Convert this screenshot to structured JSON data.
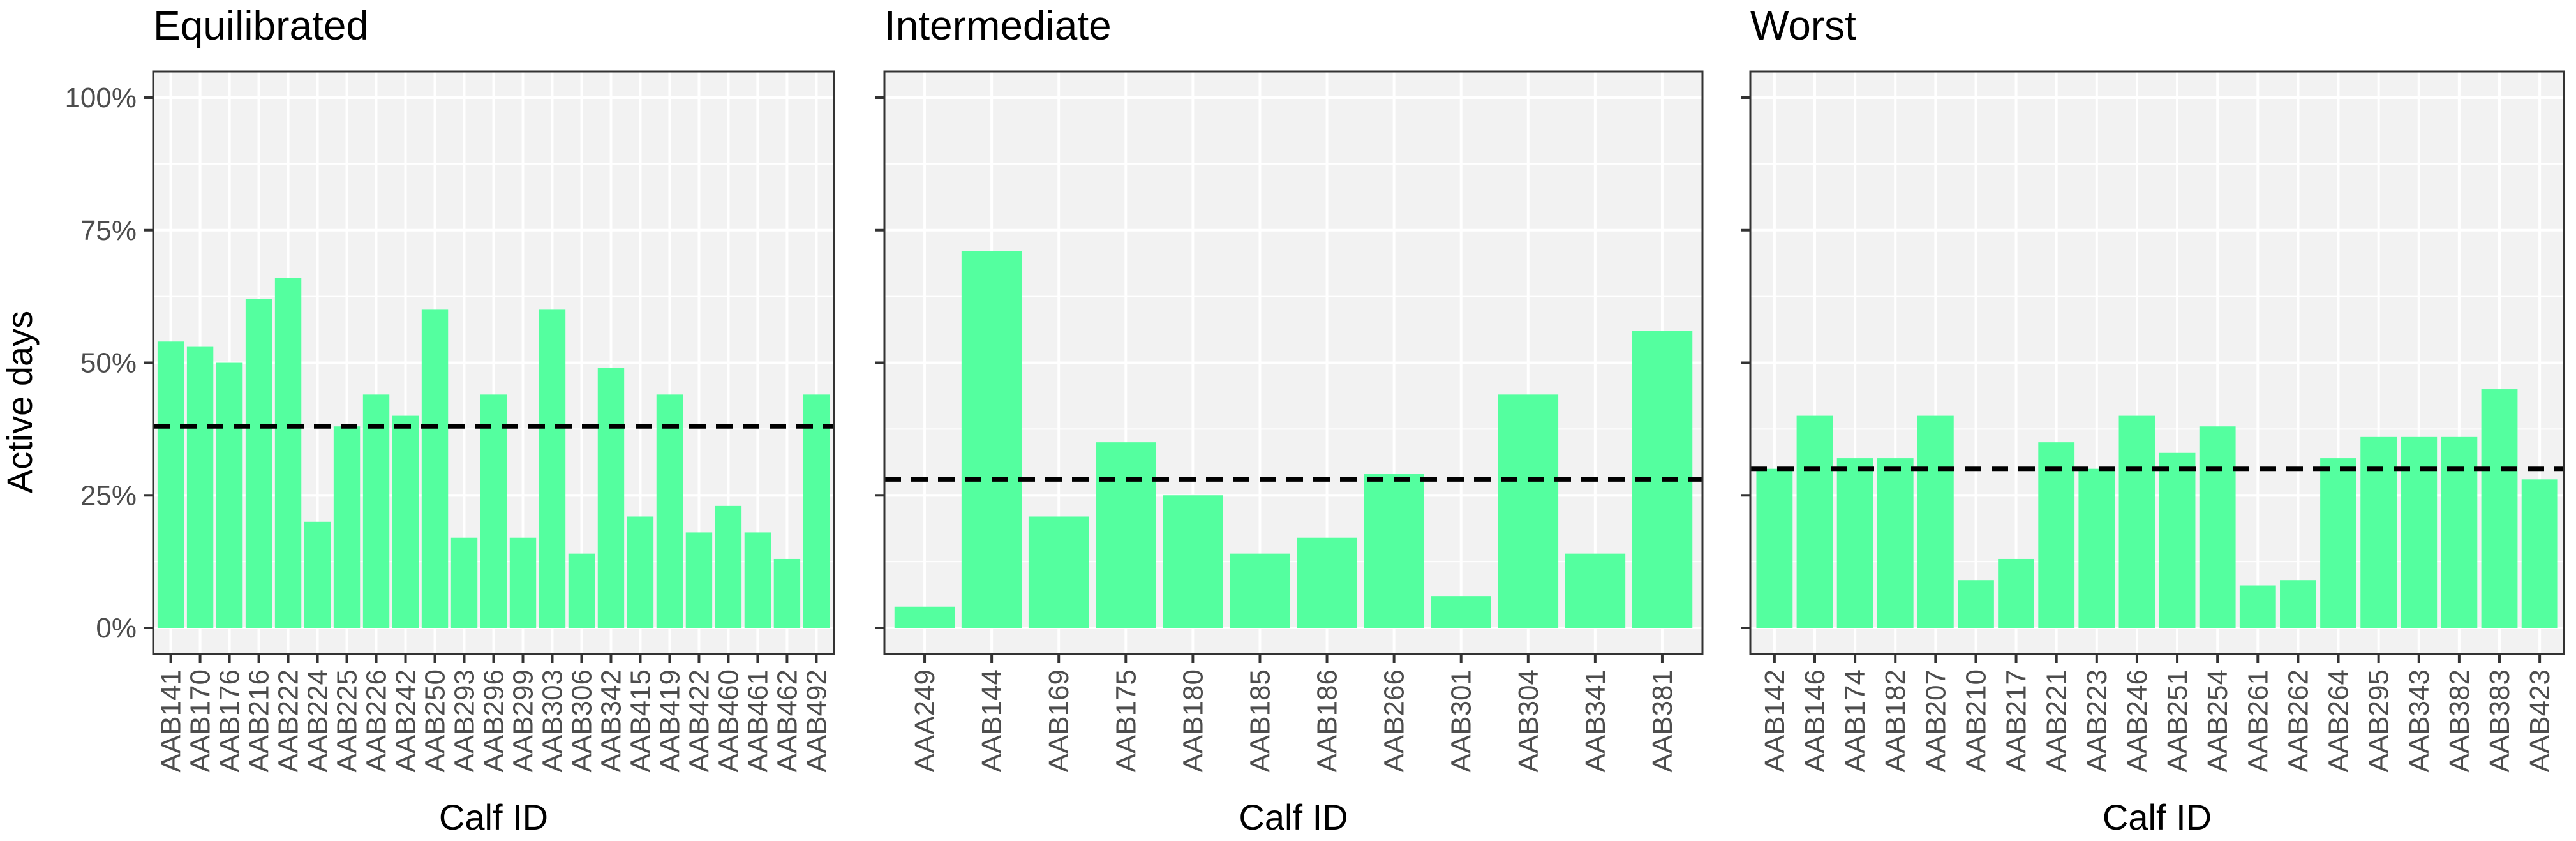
{
  "y_axis_label": "Active days",
  "colors": {
    "bar": "#54FF9F",
    "panel_background": "#F2F2F2",
    "gridline": "#FFFFFF",
    "reference_line": "#000000",
    "axis_text": "#4D4D4D",
    "title_text": "#000000"
  },
  "chart_data": [
    {
      "type": "bar",
      "title": "Equilibrated",
      "xlabel": "Calf ID",
      "ylabel": "Active days",
      "ylim": [
        0,
        1
      ],
      "yticks": [
        0,
        0.25,
        0.5,
        0.75,
        1
      ],
      "ytick_labels": [
        "0%",
        "25%",
        "50%",
        "75%",
        "100%"
      ],
      "grid": true,
      "reference_line": 0.38,
      "categories": [
        "AAB141",
        "AAB170",
        "AAB176",
        "AAB216",
        "AAB222",
        "AAB224",
        "AAB225",
        "AAB226",
        "AAB242",
        "AAB250",
        "AAB293",
        "AAB296",
        "AAB299",
        "AAB303",
        "AAB306",
        "AAB342",
        "AAB415",
        "AAB419",
        "AAB422",
        "AAB460",
        "AAB461",
        "AAB462",
        "AAB492"
      ],
      "values": [
        0.54,
        0.53,
        0.5,
        0.62,
        0.66,
        0.2,
        0.38,
        0.44,
        0.4,
        0.6,
        0.17,
        0.44,
        0.17,
        0.6,
        0.14,
        0.49,
        0.21,
        0.44,
        0.18,
        0.23,
        0.18,
        0.13,
        0.44
      ]
    },
    {
      "type": "bar",
      "title": "Intermediate",
      "xlabel": "Calf ID",
      "ylabel": "Active days",
      "ylim": [
        0,
        1
      ],
      "yticks": [
        0,
        0.25,
        0.5,
        0.75,
        1
      ],
      "ytick_labels": [
        "0%",
        "25%",
        "50%",
        "75%",
        "100%"
      ],
      "grid": true,
      "reference_line": 0.28,
      "categories": [
        "AAA249",
        "AAB144",
        "AAB169",
        "AAB175",
        "AAB180",
        "AAB185",
        "AAB186",
        "AAB266",
        "AAB301",
        "AAB304",
        "AAB341",
        "AAB381"
      ],
      "values": [
        0.04,
        0.71,
        0.21,
        0.35,
        0.25,
        0.14,
        0.17,
        0.29,
        0.06,
        0.44,
        0.14,
        0.56
      ]
    },
    {
      "type": "bar",
      "title": "Worst",
      "xlabel": "Calf ID",
      "ylabel": "Active days",
      "ylim": [
        0,
        1
      ],
      "yticks": [
        0,
        0.25,
        0.5,
        0.75,
        1
      ],
      "ytick_labels": [
        "0%",
        "25%",
        "50%",
        "75%",
        "100%"
      ],
      "grid": true,
      "reference_line": 0.3,
      "categories": [
        "AAB142",
        "AAB146",
        "AAB174",
        "AAB182",
        "AAB207",
        "AAB210",
        "AAB217",
        "AAB221",
        "AAB223",
        "AAB246",
        "AAB251",
        "AAB254",
        "AAB261",
        "AAB262",
        "AAB264",
        "AAB295",
        "AAB343",
        "AAB382",
        "AAB383",
        "AAB423"
      ],
      "values": [
        0.3,
        0.4,
        0.32,
        0.32,
        0.4,
        0.09,
        0.13,
        0.35,
        0.3,
        0.4,
        0.33,
        0.38,
        0.08,
        0.09,
        0.32,
        0.36,
        0.36,
        0.36,
        0.45,
        0.28
      ]
    }
  ]
}
